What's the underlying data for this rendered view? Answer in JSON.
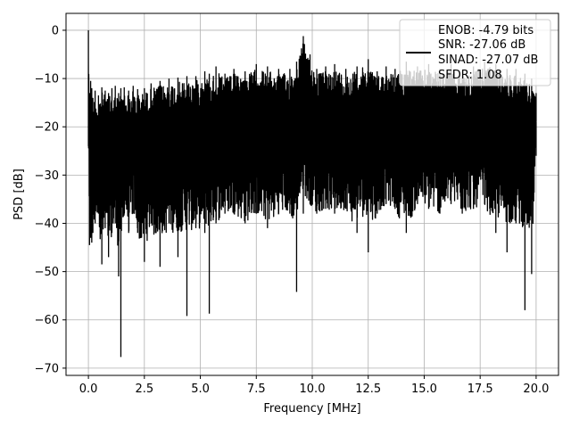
{
  "chart_data": {
    "type": "line",
    "xlabel": "Frequency [MHz]",
    "ylabel": "PSD [dB]",
    "xlim": [
      -1.0,
      21.0
    ],
    "ylim": [
      -71.5,
      3.5
    ],
    "xticks": [
      0.0,
      2.5,
      5.0,
      7.5,
      10.0,
      12.5,
      15.0,
      17.5,
      20.0
    ],
    "xtick_labels": [
      "0.0",
      "2.5",
      "5.0",
      "7.5",
      "10.0",
      "12.5",
      "15.0",
      "17.5",
      "20.0"
    ],
    "yticks": [
      0,
      -10,
      -20,
      -30,
      -40,
      -50,
      -60,
      -70
    ],
    "ytick_labels": [
      "0",
      "−10",
      "−20",
      "−30",
      "−40",
      "−50",
      "−60",
      "−70"
    ],
    "grid": true,
    "legend": {
      "placement": "top-right",
      "lines": [
        "ENOB: -4.79 bits",
        "SNR: -27.06 dB",
        "SINAD: -27.07 dB",
        "SFDR: 1.08"
      ]
    },
    "series": [
      {
        "color": "#000000",
        "x": [
          0.0,
          0.05,
          0.1,
          0.15,
          0.2,
          0.3,
          0.45,
          0.6,
          0.75,
          0.9,
          1.05,
          1.2,
          1.35,
          1.45,
          1.6,
          1.8,
          2.0,
          2.2,
          2.5,
          2.8,
          3.2,
          3.6,
          4.0,
          4.4,
          4.8,
          5.2,
          5.4,
          5.7,
          6.1,
          6.5,
          7.0,
          7.5,
          8.0,
          8.5,
          9.0,
          9.3,
          9.6,
          9.9,
          10.2,
          10.6,
          11.0,
          11.5,
          12.0,
          12.5,
          12.9,
          13.3,
          13.7,
          14.2,
          14.7,
          15.2,
          15.7,
          16.2,
          16.7,
          17.2,
          17.7,
          18.2,
          18.7,
          19.1,
          19.5,
          19.8,
          20.0
        ],
        "upper": [
          0.0,
          -13.0,
          -10.5,
          -12.0,
          -14.0,
          -12.5,
          -13.5,
          -11.8,
          -12.5,
          -13.0,
          -12.0,
          -11.5,
          -13.0,
          -12.0,
          -11.8,
          -12.5,
          -11.5,
          -12.2,
          -12.0,
          -11.0,
          -10.5,
          -10.0,
          -9.8,
          -9.5,
          -9.5,
          -8.5,
          -9.0,
          -7.5,
          -9.0,
          -8.0,
          -8.5,
          -7.0,
          -7.5,
          -8.0,
          -8.0,
          -6.5,
          -1.2,
          -5.0,
          -8.0,
          -7.5,
          -7.0,
          -8.0,
          -7.5,
          -6.0,
          -8.5,
          -7.5,
          -8.0,
          -6.5,
          -7.5,
          -7.0,
          -8.0,
          -7.0,
          -8.5,
          -7.5,
          -6.5,
          -7.0,
          -8.0,
          -8.0,
          -9.0,
          -10.0,
          -13.0
        ],
        "lower": [
          -24.0,
          -44.5,
          -43.0,
          -44.0,
          -42.0,
          -40.0,
          -38.0,
          -48.5,
          -41.0,
          -47.0,
          -42.0,
          -40.0,
          -51.0,
          -67.7,
          -38.0,
          -42.0,
          -38.0,
          -42.0,
          -48.0,
          -40.0,
          -49.0,
          -40.0,
          -47.0,
          -59.2,
          -41.0,
          -42.0,
          -58.7,
          -40.0,
          -38.0,
          -38.0,
          -40.0,
          -38.0,
          -41.0,
          -38.0,
          -38.0,
          -54.2,
          -38.0,
          -36.0,
          -38.0,
          -37.0,
          -38.0,
          -37.0,
          -42.0,
          -46.0,
          -38.0,
          -36.0,
          -37.0,
          -42.0,
          -36.0,
          -37.0,
          -38.0,
          -36.0,
          -38.0,
          -37.0,
          -36.0,
          -42.0,
          -46.0,
          -40.0,
          -58.0,
          -50.5,
          -26.0
        ]
      }
    ]
  }
}
